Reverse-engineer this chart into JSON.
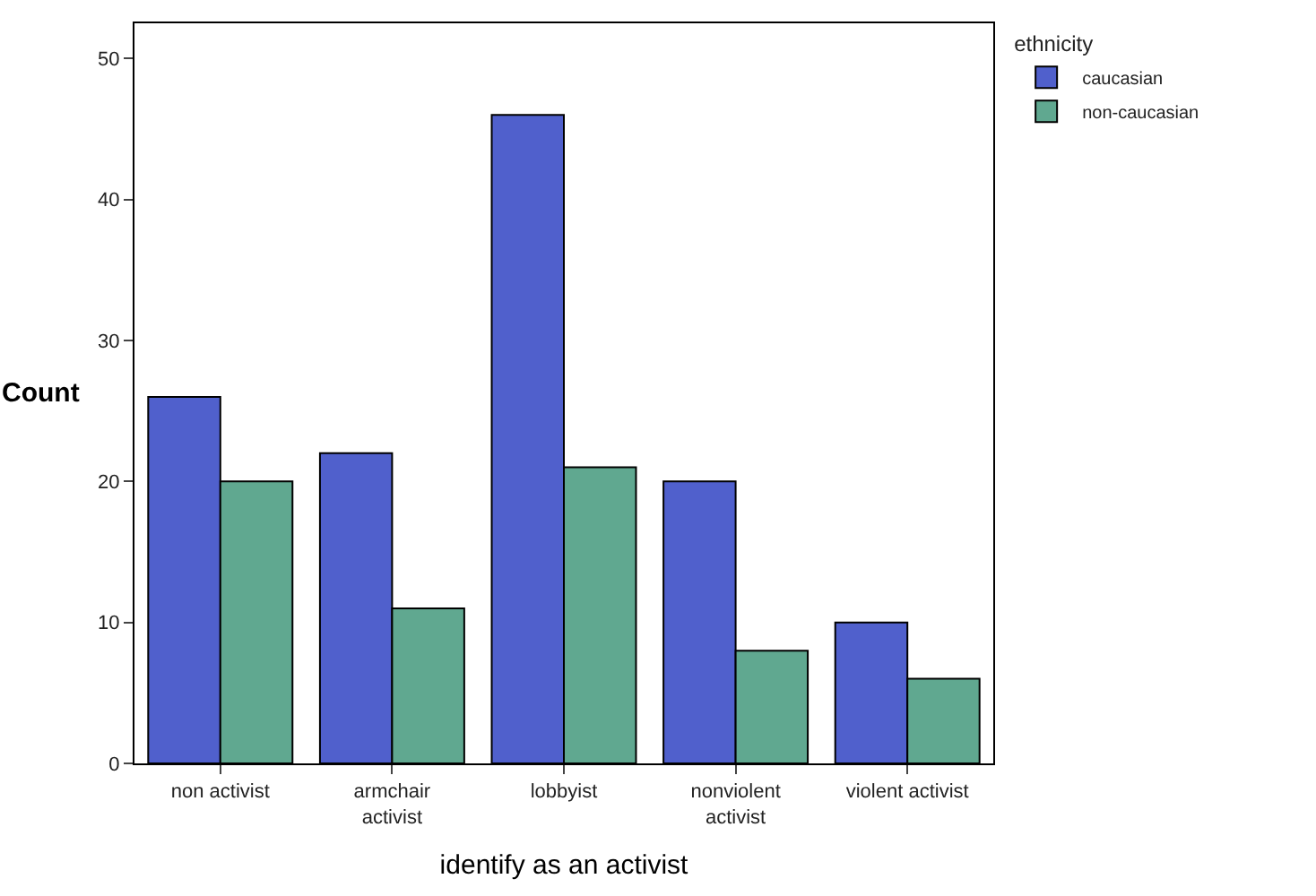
{
  "chart_data": {
    "type": "bar",
    "categories": [
      "non activist",
      "armchair\nactivist",
      "lobbyist",
      "nonviolent\nactivist",
      "violent activist"
    ],
    "series": [
      {
        "name": "caucasian",
        "color": "#5060cc",
        "values": [
          26,
          22,
          46,
          20,
          10
        ]
      },
      {
        "name": "non-caucasian",
        "color": "#60a890",
        "values": [
          20,
          11,
          21,
          8,
          6
        ]
      }
    ],
    "xlabel": "identify as an activist",
    "ylabel": "Count",
    "legend_title": "ethnicity",
    "ylim": [
      0,
      52.5
    ],
    "yticks": [
      0,
      10,
      20,
      30,
      40,
      50
    ],
    "legend": "top right"
  }
}
